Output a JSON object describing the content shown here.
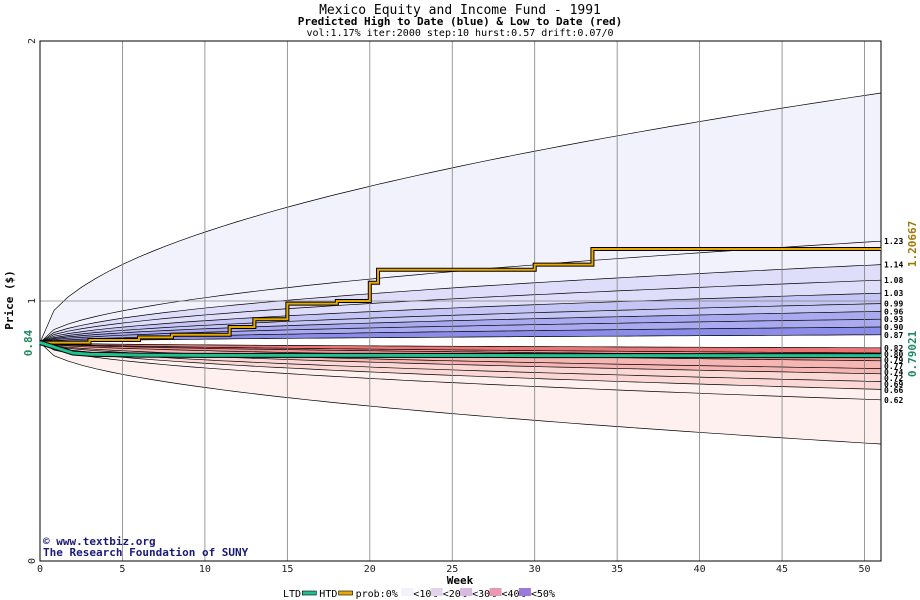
{
  "chart_data": {
    "type": "area",
    "title": "Mexico Equity and Income Fund - 1991",
    "subtitle": "Predicted High to Date (blue) &  Low to Date (red)",
    "params": "vol:1.17% iter:2000 step:10 hurst:0.57 drift:0.07/0",
    "xlabel": "Week",
    "ylabel": "Price ($)",
    "xlim": [
      0,
      51
    ],
    "ylim": [
      0,
      2
    ],
    "x_ticks": [
      0,
      5,
      10,
      15,
      20,
      25,
      30,
      35,
      40,
      45,
      50
    ],
    "y_ticks": [
      0,
      1,
      2
    ],
    "grid": true,
    "start_price": 0.84,
    "start_price_label": "0.84",
    "high_to_date": 1.20667,
    "high_to_date_label": "1.20667",
    "low_to_date": 0.79021,
    "low_to_date_label": "0.79021",
    "htd_percentile_end_values": [
      1.23,
      1.14,
      1.08,
      1.03,
      0.99,
      0.96,
      0.93,
      0.9,
      0.87
    ],
    "htd_percentile_end_labels": [
      "1.23",
      "1.14",
      "1.08",
      "1.03",
      "0.99",
      "0.96",
      "0.93",
      "0.90",
      "0.87"
    ],
    "ltd_percentile_end_values": [
      0.82,
      0.8,
      0.79,
      0.77,
      0.74,
      0.72,
      0.69,
      0.66,
      0.62
    ],
    "ltd_percentile_end_labels": [
      "0.82",
      "0.80",
      "0.79",
      "0.77",
      "0.74",
      "0.72",
      "0.69",
      "0.66",
      "0.62"
    ],
    "htd_outer_upper_end": 1.8,
    "ltd_outer_lower_end": 0.45,
    "series": [
      {
        "name": "HTD",
        "color": "#e8a800",
        "x": [
          0,
          3,
          6,
          8,
          11.5,
          13,
          15,
          18,
          20,
          20.5,
          27,
          30,
          33.5,
          51
        ],
        "values": [
          0.84,
          0.85,
          0.86,
          0.87,
          0.9,
          0.93,
          0.99,
          1.0,
          1.07,
          1.12,
          1.12,
          1.14,
          1.2,
          1.2
        ]
      },
      {
        "name": "LTD",
        "color": "#20c090",
        "x": [
          0,
          1,
          2,
          3,
          6,
          10,
          20,
          30,
          40,
          51
        ],
        "values": [
          0.84,
          0.82,
          0.8,
          0.795,
          0.792,
          0.791,
          0.791,
          0.79,
          0.79,
          0.79
        ]
      }
    ],
    "band_colors": {
      "htd": [
        "#f2f2fd",
        "#dedefa",
        "#c6c6f6",
        "#aaaaf0",
        "#8c8cea"
      ],
      "ltd": [
        "#fdf0ee",
        "#fbd8d6",
        "#f6b6b4",
        "#f19594",
        "#ec7676"
      ]
    },
    "legend": {
      "position": "bottom-center",
      "items": [
        {
          "label": "LTD",
          "color": "#20c090"
        },
        {
          "label": "HTD",
          "color": "#e8a800"
        },
        {
          "label": "prob:0%",
          "color": ""
        },
        {
          "label": "<10%",
          "color": "#f2f2fd"
        },
        {
          "label": "<20%",
          "color": "#e0d4ec"
        },
        {
          "label": "<30%",
          "color": "#d6b8e0"
        },
        {
          "label": "<40%",
          "color": "#e898b0"
        },
        {
          "label": "<50%",
          "color": "#9a7ad6"
        }
      ]
    },
    "credit_lines": [
      "www.textbiz.org",
      "The Research Foundation of SUNY"
    ]
  }
}
